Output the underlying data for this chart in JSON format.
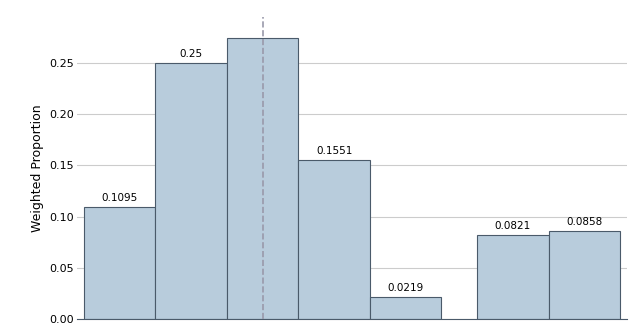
{
  "bar_values": [
    0.1095,
    0.25,
    0.2744,
    0.1551,
    0.0219,
    0.0821,
    0.0858
  ],
  "bar_labels": [
    "0.1095",
    "0.25",
    "",
    "0.1551",
    "0.0219",
    "0.0821",
    "0.0858"
  ],
  "bar_left_edges": [
    0,
    1,
    2,
    3,
    4,
    5.5,
    6.5
  ],
  "bar_width": 1.0,
  "bar_color": "#b8ccdc",
  "bar_edge_color": "#4a5a6a",
  "dashed_line_x": 2.5,
  "ylabel": "Weighted Proportion",
  "ylim": [
    0,
    0.295
  ],
  "yticks": [
    0.0,
    0.05,
    0.1,
    0.15,
    0.2,
    0.25
  ],
  "xlim": [
    -0.1,
    7.6
  ],
  "background_color": "#ffffff",
  "grid_color": "#cccccc",
  "label_fontsize": 7.5,
  "ylabel_fontsize": 9
}
